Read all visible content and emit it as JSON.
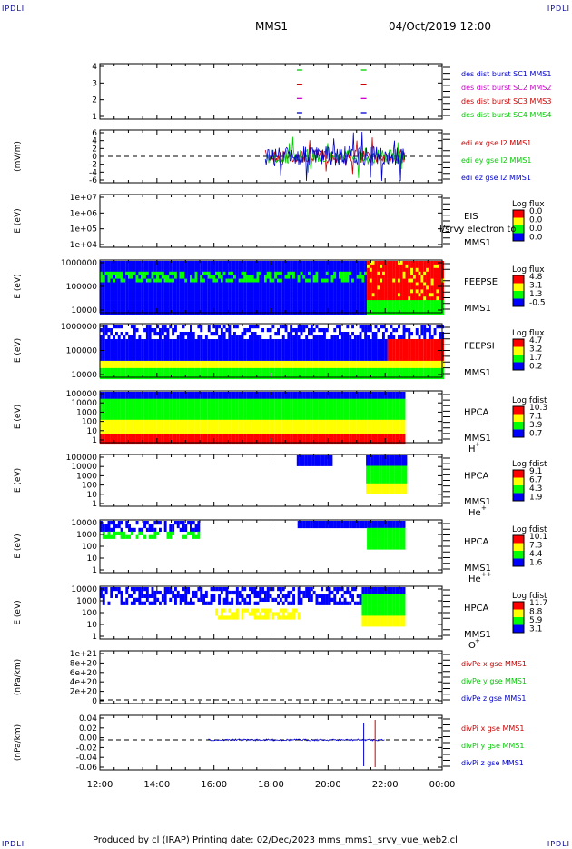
{
  "header": {
    "corner_tl": "IPDLI",
    "corner_tr": "IPDLI",
    "corner_bl": "IPDLI",
    "corner_br": "IPDLI",
    "title": "MMS1",
    "datetime": "04/Oct/2019 12:00"
  },
  "footer": {
    "text": "Produced by cl (IRAP)   Printing date: 02/Dec/2023   mms_mms1_srvy_vue_web2.cl"
  },
  "colors": {
    "spectrogram_scale": [
      "#0000ff",
      "#00ff00",
      "#ffff00",
      "#ff0000"
    ],
    "line_red": "#cc0000",
    "line_green": "#00cc00",
    "line_blue": "#0000cc",
    "line_magenta": "#cc00cc"
  },
  "chart_data": [
    {
      "type": "scatter",
      "title": "",
      "ylim": [
        0.5,
        4.5
      ],
      "yticks": [
        "4",
        "3",
        "2",
        "1"
      ],
      "x_ticks": [
        "12:00",
        "14:00",
        "16:00",
        "18:00",
        "20:00",
        "22:00",
        "00:00"
      ],
      "series": [
        {
          "name": "des dist burst SC1 MMS1",
          "color": "#0000cc",
          "y": 1,
          "x": [
            "19:00",
            "21:15"
          ]
        },
        {
          "name": "des dist burst SC2 MMS2",
          "color": "#cc00cc",
          "y": 2,
          "x": [
            "19:00",
            "21:15"
          ]
        },
        {
          "name": "des dist burst SC3 MMS3",
          "color": "#cc0000",
          "y": 3,
          "x": [
            "19:00",
            "21:15"
          ]
        },
        {
          "name": "des dist burst SC4 MMS4",
          "color": "#00cc00",
          "y": 4,
          "x": [
            "19:00",
            "21:15"
          ]
        }
      ]
    },
    {
      "type": "line",
      "ylabel": "(mV/m)",
      "yticks": [
        "6",
        "4",
        "2",
        "0",
        "-2",
        "-4",
        "-6"
      ],
      "ylim": [
        -6,
        6
      ],
      "series": [
        {
          "name": "edi ex gse l2 MMS1",
          "color": "#cc0000"
        },
        {
          "name": "edi ey gse l2 MMS1",
          "color": "#00cc00"
        },
        {
          "name": "edi ez gse l2 MMS1",
          "color": "#0000cc"
        }
      ]
    },
    {
      "type": "heatmap",
      "ylabel": "E (eV)",
      "yticks": [
        "1e+07",
        "1e+06",
        "1e+05",
        "1e+04"
      ],
      "instrument": "EIS",
      "instrument_sub": "MMS1",
      "overlay_label": "l/srvy electron to",
      "colorbar_title": "Log flux",
      "colorbar_ticks": [
        "0.0",
        "0.0",
        "0.0",
        "0.0"
      ]
    },
    {
      "type": "heatmap",
      "ylabel": "E (eV)",
      "yticks": [
        "1000000",
        "100000",
        "10000"
      ],
      "instrument": "FEEPSE",
      "instrument_sub": "MMS1",
      "colorbar_title": "Log flux",
      "colorbar_ticks": [
        "4.8",
        "3.1",
        "1.3",
        "-0.5"
      ]
    },
    {
      "type": "heatmap",
      "ylabel": "E (eV)",
      "yticks": [
        "1000000",
        "100000",
        "10000"
      ],
      "instrument": "FEEPSI",
      "instrument_sub": "MMS1",
      "colorbar_title": "Log flux",
      "colorbar_ticks": [
        "4.7",
        "3.2",
        "1.7",
        "0.2"
      ]
    },
    {
      "type": "heatmap",
      "ylabel": "E (eV)",
      "yticks": [
        "100000",
        "10000",
        "1000",
        "100",
        "10",
        "1"
      ],
      "instrument": "HPCA",
      "instrument_sub": "MMS1",
      "species": "H",
      "species_sup": "+",
      "colorbar_title": "Log fdist",
      "colorbar_ticks": [
        "10.3",
        "7.1",
        "3.9",
        "0.7"
      ]
    },
    {
      "type": "heatmap",
      "ylabel": "E (eV)",
      "yticks": [
        "100000",
        "10000",
        "1000",
        "100",
        "10",
        "1"
      ],
      "instrument": "HPCA",
      "instrument_sub": "MMS1",
      "species": "He",
      "species_sup": "+",
      "colorbar_title": "Log fdist",
      "colorbar_ticks": [
        "9.1",
        "6.7",
        "4.3",
        "1.9"
      ]
    },
    {
      "type": "heatmap",
      "ylabel": "E (eV)",
      "yticks": [
        "10000",
        "1000",
        "100",
        "10",
        "1"
      ],
      "instrument": "HPCA",
      "instrument_sub": "MMS1",
      "species": "He",
      "species_sup": "++",
      "colorbar_title": "Log fdist",
      "colorbar_ticks": [
        "10.1",
        "7.3",
        "4.4",
        "1.6"
      ]
    },
    {
      "type": "heatmap",
      "ylabel": "E (eV)",
      "yticks": [
        "10000",
        "1000",
        "100",
        "10",
        "1"
      ],
      "instrument": "HPCA",
      "instrument_sub": "MMS1",
      "species": "O",
      "species_sup": "+",
      "colorbar_title": "Log fdist",
      "colorbar_ticks": [
        "11.7",
        "8.8",
        "5.9",
        "3.1"
      ]
    },
    {
      "type": "line",
      "ylabel": "(nPa/km)",
      "yticks": [
        "1e+21",
        "8e+20",
        "6e+20",
        "4e+20",
        "2e+20",
        "0"
      ],
      "series": [
        {
          "name": "divPe x gse MMS1",
          "color": "#cc0000"
        },
        {
          "name": "divPe y gse MMS1",
          "color": "#00cc00"
        },
        {
          "name": "divPe z gse MMS1",
          "color": "#0000cc"
        }
      ]
    },
    {
      "type": "line",
      "ylabel": "(nPa/km)",
      "yticks": [
        "0.04",
        "0.02",
        "0.00",
        "-0.02",
        "-0.04",
        "-0.06"
      ],
      "ylim": [
        -0.06,
        0.05
      ],
      "series": [
        {
          "name": "divPi x gse MMS1",
          "color": "#cc0000"
        },
        {
          "name": "divPi y gse MMS1",
          "color": "#00cc00"
        },
        {
          "name": "divPi z gse MMS1",
          "color": "#0000cc"
        }
      ]
    }
  ]
}
